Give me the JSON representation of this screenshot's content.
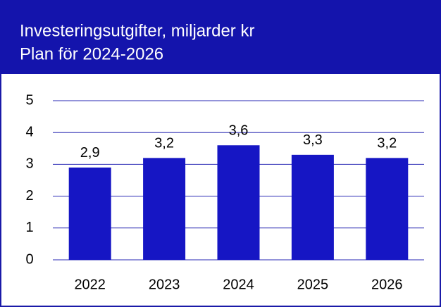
{
  "chart_data": {
    "type": "bar",
    "title": "Investeringsutgifter, miljarder kr",
    "subtitle": "Plan för 2024-2026",
    "categories": [
      "2022",
      "2023",
      "2024",
      "2025",
      "2026"
    ],
    "values": [
      2.9,
      3.2,
      3.6,
      3.3,
      3.2
    ],
    "value_labels": [
      "2,9",
      "3,2",
      "3,6",
      "3,3",
      "3,2"
    ],
    "color": "#1616c4",
    "ylim": [
      0,
      5
    ],
    "yticks": [
      0,
      1,
      2,
      3,
      4,
      5
    ],
    "grid": true
  }
}
